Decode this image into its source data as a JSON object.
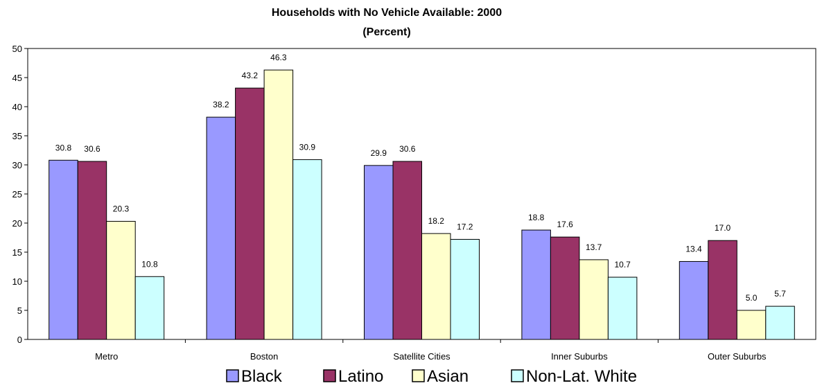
{
  "chart_data": {
    "type": "bar",
    "title": "Households with No Vehicle Available:  2000",
    "subtitle": "(Percent)",
    "categories": [
      "Metro",
      "Boston",
      "Satellite Cities",
      "Inner Suburbs",
      "Outer Suburbs"
    ],
    "series": [
      {
        "name": "Black",
        "color": "#9999ff",
        "values": [
          30.8,
          38.2,
          29.9,
          18.8,
          13.4
        ]
      },
      {
        "name": "Latino",
        "color": "#993366",
        "values": [
          30.6,
          43.2,
          30.6,
          17.6,
          17.0
        ]
      },
      {
        "name": "Asian",
        "color": "#ffffcc",
        "values": [
          20.3,
          46.3,
          18.2,
          13.7,
          5.0
        ]
      },
      {
        "name": "Non-Lat. White",
        "color": "#ccffff",
        "values": [
          10.8,
          30.9,
          17.2,
          10.7,
          5.7
        ]
      }
    ],
    "ylim": [
      0,
      50
    ],
    "yticks": [
      0,
      5,
      10,
      15,
      20,
      25,
      30,
      35,
      40,
      45,
      50
    ],
    "data_label_format": "0.0",
    "grid": false,
    "legend_position": "bottom"
  }
}
